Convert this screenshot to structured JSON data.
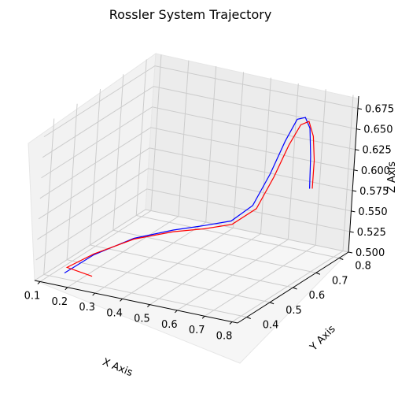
{
  "chart_data": {
    "type": "line",
    "projection": "3d",
    "title": "Rossler System Trajectory",
    "xlabel": "X Axis",
    "ylabel": "Y Axis",
    "zlabel": "Z Axis",
    "xticks": [
      "0.1",
      "0.2",
      "0.3",
      "0.4",
      "0.5",
      "0.6",
      "0.7",
      "0.8"
    ],
    "yticks": [
      "0.4",
      "0.5",
      "0.6",
      "0.7",
      "0.8"
    ],
    "zticks": [
      "0.500",
      "0.525",
      "0.550",
      "0.575",
      "0.600",
      "0.625",
      "0.650",
      "0.675"
    ],
    "grid": true,
    "series": [
      {
        "color": "#0000ff",
        "points": [
          [
            0.13,
            0.43,
            0.5
          ],
          [
            0.2,
            0.47,
            0.52
          ],
          [
            0.3,
            0.52,
            0.538
          ],
          [
            0.4,
            0.57,
            0.546
          ],
          [
            0.48,
            0.61,
            0.55
          ],
          [
            0.55,
            0.64,
            0.555
          ],
          [
            0.6,
            0.67,
            0.572
          ],
          [
            0.64,
            0.69,
            0.61
          ],
          [
            0.67,
            0.71,
            0.648
          ],
          [
            0.7,
            0.72,
            0.675
          ],
          [
            0.725,
            0.725,
            0.678
          ],
          [
            0.74,
            0.73,
            0.665
          ],
          [
            0.745,
            0.735,
            0.63
          ],
          [
            0.745,
            0.74,
            0.59
          ]
        ]
      },
      {
        "color": "#ff0000",
        "points": [
          [
            0.23,
            0.43,
            0.503
          ],
          [
            0.13,
            0.44,
            0.505
          ],
          [
            0.2,
            0.47,
            0.521
          ],
          [
            0.3,
            0.52,
            0.537
          ],
          [
            0.4,
            0.57,
            0.544
          ],
          [
            0.48,
            0.61,
            0.546
          ],
          [
            0.55,
            0.645,
            0.55
          ],
          [
            0.61,
            0.675,
            0.568
          ],
          [
            0.65,
            0.695,
            0.606
          ],
          [
            0.68,
            0.715,
            0.643
          ],
          [
            0.71,
            0.725,
            0.668
          ],
          [
            0.735,
            0.73,
            0.673
          ],
          [
            0.75,
            0.735,
            0.655
          ],
          [
            0.755,
            0.74,
            0.625
          ],
          [
            0.752,
            0.743,
            0.59
          ]
        ]
      }
    ]
  }
}
